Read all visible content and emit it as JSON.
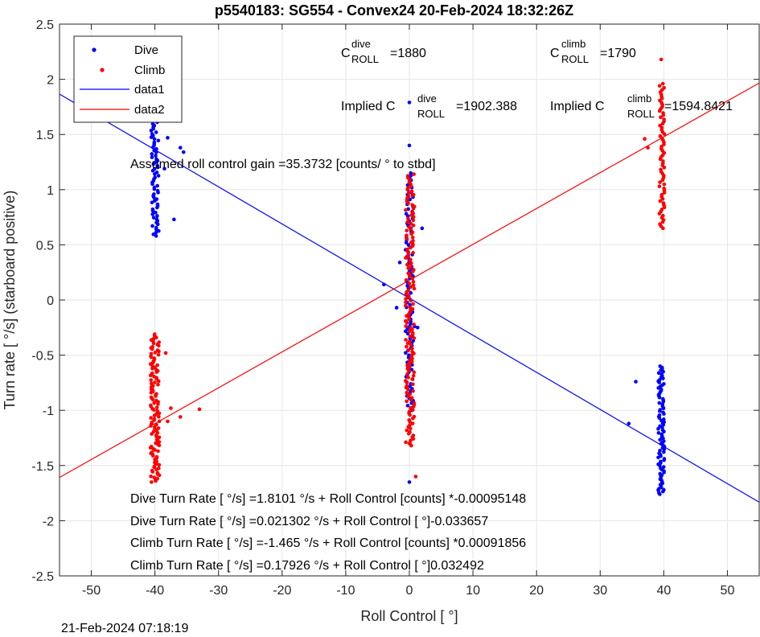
{
  "title": "p5540183: SG554 - Convex24 20-Feb-2024 18:32:26Z",
  "timestamp": "21-Feb-2024 07:18:19",
  "chart_data": {
    "type": "scatter",
    "xlabel": "Roll Control [   °]",
    "ylabel": "Turn rate [   °/s] (starboard positive)",
    "xlim": [
      -55,
      55
    ],
    "ylim": [
      -2.5,
      2.5
    ],
    "xticks": [
      -50,
      -40,
      -30,
      -20,
      -10,
      0,
      10,
      20,
      30,
      40,
      50
    ],
    "yticks": [
      -2.5,
      -2,
      -1.5,
      -1,
      -0.5,
      0,
      0.5,
      1,
      1.5,
      2,
      2.5
    ],
    "xtick_labels": [
      "-50",
      "-40",
      "-30",
      "-20",
      "-10",
      "0",
      "10",
      "20",
      "30",
      "40",
      "50"
    ],
    "ytick_labels": [
      "-2.5",
      "-2",
      "-1.5",
      "-1",
      "-0.5",
      "0",
      "0.5",
      "1",
      "1.5",
      "2",
      "2.5"
    ],
    "grid": true,
    "legend_position": "top-left",
    "series": [
      {
        "name": "Dive",
        "type": "scatter",
        "color": "#0000ff",
        "clusters": [
          {
            "x": -40,
            "x_spread": 0.6,
            "y_min": 0.58,
            "y_max": 1.93,
            "count": 90
          },
          {
            "x": 0,
            "x_spread": 0.6,
            "y_min": -1.0,
            "y_max": 1.15,
            "count": 100
          },
          {
            "x": 39.6,
            "x_spread": 0.5,
            "y_min": -1.76,
            "y_max": -0.6,
            "count": 95
          }
        ],
        "points": [
          [
            -38,
            1.47
          ],
          [
            -37,
            0.73
          ],
          [
            -36,
            1.38
          ],
          [
            -35.5,
            1.34
          ],
          [
            -38.5,
            1.19
          ],
          [
            0,
            1.79
          ],
          [
            0,
            1.4
          ],
          [
            -2,
            -0.07
          ],
          [
            -4,
            0.14
          ],
          [
            0.8,
            -0.24
          ],
          [
            1.3,
            -0.25
          ],
          [
            2,
            0.65
          ],
          [
            -1.5,
            0.34
          ],
          [
            0,
            -1.65
          ],
          [
            34.5,
            -1.12
          ],
          [
            35.6,
            -0.74
          ],
          [
            40,
            -1.72
          ]
        ]
      },
      {
        "name": "Climb",
        "type": "scatter",
        "color": "#ff0000",
        "clusters": [
          {
            "x": -40,
            "x_spread": 0.7,
            "y_min": -1.65,
            "y_max": -0.31,
            "count": 130
          },
          {
            "x": 0.1,
            "x_spread": 0.7,
            "y_min": -1.32,
            "y_max": 1.14,
            "count": 160
          },
          {
            "x": 39.7,
            "x_spread": 0.4,
            "y_min": 0.65,
            "y_max": 1.96,
            "count": 70
          }
        ],
        "points": [
          [
            -33,
            -0.99
          ],
          [
            -36,
            -1.06
          ],
          [
            -37.5,
            -0.98
          ],
          [
            -38,
            -1.1
          ],
          [
            -38.3,
            -0.48
          ],
          [
            37,
            1.46
          ],
          [
            37.5,
            1.38
          ],
          [
            39.6,
            2.18
          ],
          [
            1,
            -1.6
          ],
          [
            0,
            -1.3
          ],
          [
            0.5,
            0.95
          ]
        ]
      },
      {
        "name": "data1",
        "type": "line",
        "color": "#0000ff",
        "x": [
          -55,
          55
        ],
        "y": [
          1.8658,
          -1.8324
        ]
      },
      {
        "name": "data2",
        "type": "line",
        "color": "#ff0000",
        "x": [
          -55,
          55
        ],
        "y": [
          -1.6078,
          1.9663
        ]
      }
    ],
    "annotations": {
      "c_dive": {
        "base": "C",
        "sup": "dive",
        "sub": "ROLL",
        "value": "=1880"
      },
      "c_climb": {
        "base": "C",
        "sup": "climb",
        "sub": "ROLL",
        "value": "=1790"
      },
      "implied_dive": {
        "base": "Implied C",
        "sup": "dive",
        "sub": "ROLL",
        "value": "=1902.388"
      },
      "implied_climb": {
        "base": "Implied C",
        "sup": "climb",
        "sub": "ROLL",
        "value": "=1594.8421"
      },
      "gain": "Assumed roll control gain =35.3732 [counts/           ° to stbd]",
      "fits": [
        "Dive Turn Rate [    °/s] =1.8101     °/s + Roll Control [counts] *-0.00095148",
        "Dive Turn Rate [    °/s] =0.021302     °/s + Roll Control [     °]-0.033657",
        "Climb Turn Rate [    °/s] =-1.465    °/s + Roll Control [counts] *0.00091856",
        "Climb Turn Rate [    °/s] =0.17926     °/s + Roll Control [     °]0.032492"
      ]
    }
  }
}
